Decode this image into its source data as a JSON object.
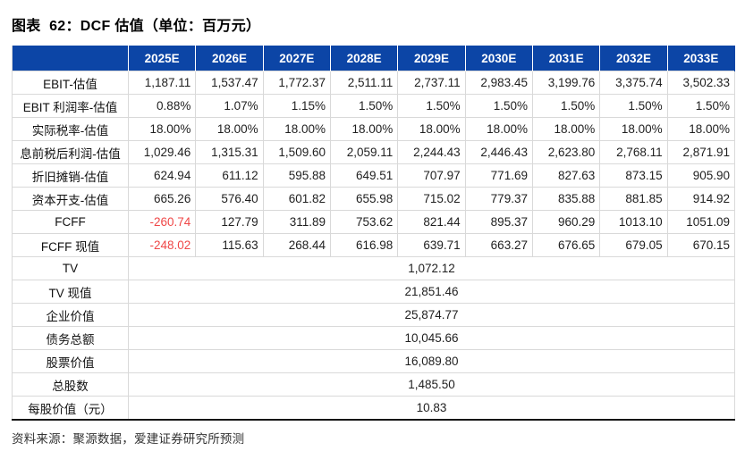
{
  "title": "图表  62：DCF 估值（单位：百万元）",
  "table": {
    "header": [
      "",
      "2025E",
      "2026E",
      "2027E",
      "2028E",
      "2029E",
      "2030E",
      "2031E",
      "2032E",
      "2033E"
    ],
    "rows": [
      {
        "label": "EBIT-估值",
        "values": [
          "1,187.11",
          "1,537.47",
          "1,772.37",
          "2,511.11",
          "2,737.11",
          "2,983.45",
          "3,199.76",
          "3,375.74",
          "3,502.33"
        ]
      },
      {
        "label": "EBIT 利润率-估值",
        "values": [
          "0.88%",
          "1.07%",
          "1.15%",
          "1.50%",
          "1.50%",
          "1.50%",
          "1.50%",
          "1.50%",
          "1.50%"
        ]
      },
      {
        "label": "实际税率-估值",
        "values": [
          "18.00%",
          "18.00%",
          "18.00%",
          "18.00%",
          "18.00%",
          "18.00%",
          "18.00%",
          "18.00%",
          "18.00%"
        ]
      },
      {
        "label": "息前税后利润-估值",
        "values": [
          "1,029.46",
          "1,315.31",
          "1,509.60",
          "2,059.11",
          "2,244.43",
          "2,446.43",
          "2,623.80",
          "2,768.11",
          "2,871.91"
        ]
      },
      {
        "label": "折旧摊销-估值",
        "values": [
          "624.94",
          "611.12",
          "595.88",
          "649.51",
          "707.97",
          "771.69",
          "827.63",
          "873.15",
          "905.90"
        ]
      },
      {
        "label": "资本开支-估值",
        "values": [
          "665.26",
          "576.40",
          "601.82",
          "655.98",
          "715.02",
          "779.37",
          "835.88",
          "881.85",
          "914.92"
        ]
      },
      {
        "label": "FCFF",
        "values": [
          "-260.74",
          "127.79",
          "311.89",
          "753.62",
          "821.44",
          "895.37",
          "960.29",
          "1013.10",
          "1051.09"
        ]
      },
      {
        "label": "FCFF 现值",
        "values": [
          "-248.02",
          "115.63",
          "268.44",
          "616.98",
          "639.71",
          "663.27",
          "676.65",
          "679.05",
          "670.15"
        ]
      }
    ],
    "summary_rows": [
      {
        "label": "TV",
        "value": "1,072.12"
      },
      {
        "label": "TV 现值",
        "value": "21,851.46"
      },
      {
        "label": "企业价值",
        "value": "25,874.77"
      },
      {
        "label": "债务总额",
        "value": "10,045.66"
      },
      {
        "label": "股票价值",
        "value": "16,089.80"
      },
      {
        "label": "总股数",
        "value": "1,485.50"
      },
      {
        "label": "每股价值（元）",
        "value": "10.83"
      }
    ]
  },
  "footer": {
    "source": "资料来源：聚源数据，爱建证券研究所预测"
  },
  "colors": {
    "header_bg": "#0c45a6",
    "header_text": "#ffffff",
    "negative": "#ef4747",
    "grid": "#d9d9d9"
  }
}
